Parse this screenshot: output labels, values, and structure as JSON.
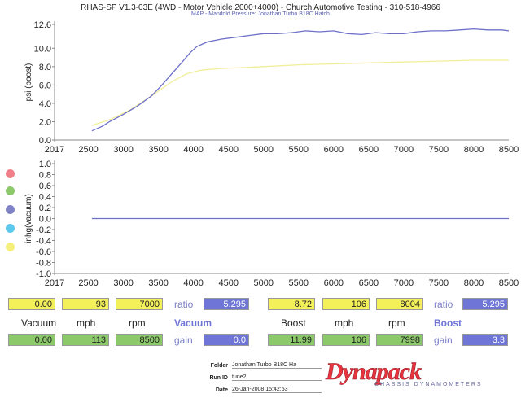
{
  "header": {
    "title": "RHAS-SP V1.3-03E  (4WD - Motor Vehicle 2000+4000) - Church Automotive Testing - 310-518-4966",
    "subtitle": "MAP - Manifold Pressure: Jonathan Turbo B18C Hatch"
  },
  "chart_data": [
    {
      "type": "line",
      "ylabel": "psi (boost)",
      "xlim": [
        2017,
        8500
      ],
      "ylim": [
        0.0,
        12.6
      ],
      "yticks": [
        "12.6",
        "10.0",
        "8.0",
        "6.0",
        "4.0",
        "2.0",
        "0.0"
      ],
      "xticks": [
        "2017",
        "2500",
        "3000",
        "3500",
        "4000",
        "4500",
        "5000",
        "5500",
        "6000",
        "6500",
        "7000",
        "7500",
        "8000",
        "8500"
      ],
      "series": [
        {
          "color": "#6d70c8",
          "x": [
            2550,
            2700,
            2800,
            3000,
            3200,
            3400,
            3550,
            3700,
            3850,
            3950,
            4050,
            4200,
            4400,
            4600,
            4800,
            5000,
            5200,
            5400,
            5600,
            5800,
            6000,
            6200,
            6400,
            6600,
            6800,
            7000,
            7200,
            7400,
            7600,
            7800,
            8000,
            8200,
            8400,
            8500
          ],
          "y": [
            1.0,
            1.5,
            2.0,
            2.8,
            3.7,
            4.8,
            6.0,
            7.3,
            8.6,
            9.5,
            10.2,
            10.7,
            11.0,
            11.2,
            11.4,
            11.6,
            11.6,
            11.7,
            11.9,
            11.8,
            11.9,
            11.6,
            11.5,
            11.7,
            11.6,
            11.6,
            11.8,
            11.9,
            11.9,
            12.0,
            12.1,
            12.0,
            12.0,
            11.9
          ]
        },
        {
          "color": "#f0ee9a",
          "x": [
            2550,
            2800,
            3100,
            3400,
            3700,
            3900,
            4100,
            4400,
            4700,
            5000,
            5500,
            6000,
            6500,
            7000,
            7500,
            8000,
            8500
          ],
          "y": [
            1.6,
            2.2,
            3.3,
            4.8,
            6.4,
            7.2,
            7.6,
            7.8,
            7.9,
            8.0,
            8.2,
            8.3,
            8.4,
            8.5,
            8.6,
            8.7,
            8.7
          ]
        }
      ]
    },
    {
      "type": "line",
      "ylabel": "inhg(vacuum)",
      "xlim": [
        2017,
        8500
      ],
      "ylim": [
        -1.0,
        1.0
      ],
      "yticks": [
        "1.0",
        "0.8",
        "0.6",
        "0.4",
        "0.2",
        "0.0",
        "-0.2",
        "-0.4",
        "-0.6",
        "-0.8",
        "-1.0"
      ],
      "xticks": [
        "2017",
        "2500",
        "3000",
        "3500",
        "4000",
        "4500",
        "5000",
        "5500",
        "6000",
        "6500",
        "7000",
        "7500",
        "8000",
        "8500"
      ],
      "series": [
        {
          "color": "#6d70c8",
          "x": [
            2550,
            8500
          ],
          "y": [
            0.0,
            0.0
          ]
        }
      ]
    }
  ],
  "legend_dots": {
    "colors": [
      "#f07e88",
      "#8cc96a",
      "#7f82c6",
      "#5cc8ec",
      "#f4f07a"
    ]
  },
  "readouts": {
    "row1": {
      "v1": "0.00",
      "v2": "93",
      "v3": "7000",
      "ratio_label": "ratio",
      "ratio1": "5.295",
      "v4": "8.72",
      "v5": "106",
      "v6": "8004",
      "ratio_label2": "ratio",
      "ratio2": "5.295"
    },
    "row2": {
      "h_vacuum": "Vacuum",
      "h_mph": "mph",
      "h_rpm": "rpm",
      "h_vacuum_bold": "Vacuum",
      "h_boost": "Boost",
      "h_mph2": "mph",
      "h_rpm2": "rpm",
      "h_boost_bold": "Boost"
    },
    "row3": {
      "v1": "0.00",
      "v2": "113",
      "v3": "8500",
      "gain_label": "gain",
      "gain1": "0.0",
      "v4": "11.99",
      "v5": "106",
      "v6": "7998",
      "gain_label2": "gain",
      "gain2": "3.3"
    }
  },
  "info": {
    "folder_label": "Folder",
    "folder_value": "Jonathan Turbo B18C Ha",
    "runid_label": "Run ID",
    "runid_value": "tune2",
    "date_label": "Date",
    "date_value": "26-Jan-2008  15:42:53"
  },
  "logo": {
    "main": "Dynapack",
    "sub": "CHASSIS  DYNAMOMETERS"
  }
}
